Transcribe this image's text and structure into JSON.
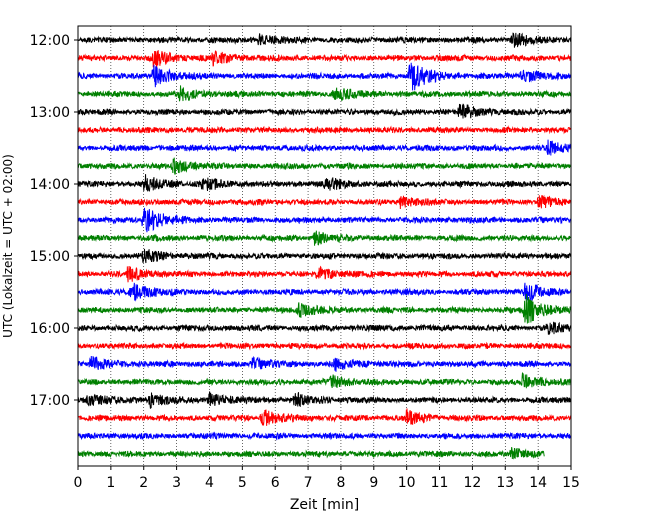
{
  "chart_data": {
    "type": "line",
    "subtype": "helicorder",
    "title": "",
    "xlabel": "Zeit  [min]",
    "ylabel": "UTC (Lokalzeit = UTC + 02:00)",
    "xlim": [
      0,
      15
    ],
    "x_ticks": [
      0,
      1,
      2,
      3,
      4,
      5,
      6,
      7,
      8,
      9,
      10,
      11,
      12,
      13,
      14,
      15
    ],
    "x_tick_labels": [
      "0",
      "1",
      "2",
      "3",
      "4",
      "5",
      "6",
      "7",
      "8",
      "9",
      "10",
      "11",
      "12",
      "13",
      "14",
      "15"
    ],
    "y_tick_labels": [
      "12:00",
      "13:00",
      "14:00",
      "15:00",
      "16:00",
      "17:00"
    ],
    "grid": "vertical dotted lines at each minute",
    "trace_interval_min": 15,
    "trace_count": 24,
    "trace_colors": [
      "#000000",
      "#ff0000",
      "#0000ff",
      "#008000"
    ],
    "trace_end_minute_last": 14.2,
    "events": [
      {
        "trace": 0,
        "minute": 5.5,
        "amp": 1.3
      },
      {
        "trace": 0,
        "minute": 13.2,
        "amp": 1.6
      },
      {
        "trace": 1,
        "minute": 2.3,
        "amp": 2.0
      },
      {
        "trace": 1,
        "minute": 4.1,
        "amp": 1.4
      },
      {
        "trace": 2,
        "minute": 2.3,
        "amp": 2.5
      },
      {
        "trace": 2,
        "minute": 10.1,
        "amp": 4.2
      },
      {
        "trace": 2,
        "minute": 13.5,
        "amp": 1.6
      },
      {
        "trace": 3,
        "minute": 3.1,
        "amp": 1.5
      },
      {
        "trace": 3,
        "minute": 7.8,
        "amp": 1.6
      },
      {
        "trace": 4,
        "minute": 11.6,
        "amp": 1.8
      },
      {
        "trace": 6,
        "minute": 14.3,
        "amp": 1.4
      },
      {
        "trace": 7,
        "minute": 2.9,
        "amp": 1.5
      },
      {
        "trace": 8,
        "minute": 2.0,
        "amp": 1.9
      },
      {
        "trace": 8,
        "minute": 3.8,
        "amp": 1.5
      },
      {
        "trace": 8,
        "minute": 7.5,
        "amp": 1.6
      },
      {
        "trace": 9,
        "minute": 9.8,
        "amp": 1.2
      },
      {
        "trace": 9,
        "minute": 14.0,
        "amp": 1.3
      },
      {
        "trace": 10,
        "minute": 2.0,
        "amp": 3.6
      },
      {
        "trace": 11,
        "minute": 7.2,
        "amp": 1.4
      },
      {
        "trace": 12,
        "minute": 2.0,
        "amp": 1.6
      },
      {
        "trace": 13,
        "minute": 1.5,
        "amp": 1.6
      },
      {
        "trace": 13,
        "minute": 7.3,
        "amp": 1.3
      },
      {
        "trace": 14,
        "minute": 1.6,
        "amp": 2.2
      },
      {
        "trace": 14,
        "minute": 13.6,
        "amp": 2.3
      },
      {
        "trace": 15,
        "minute": 6.7,
        "amp": 1.6
      },
      {
        "trace": 15,
        "minute": 13.6,
        "amp": 3.6
      },
      {
        "trace": 16,
        "minute": 14.3,
        "amp": 1.3
      },
      {
        "trace": 18,
        "minute": 0.4,
        "amp": 1.6
      },
      {
        "trace": 18,
        "minute": 5.3,
        "amp": 1.3
      },
      {
        "trace": 18,
        "minute": 7.8,
        "amp": 1.3
      },
      {
        "trace": 19,
        "minute": 7.7,
        "amp": 1.4
      },
      {
        "trace": 19,
        "minute": 13.5,
        "amp": 1.8
      },
      {
        "trace": 20,
        "minute": 0.3,
        "amp": 1.5
      },
      {
        "trace": 20,
        "minute": 2.2,
        "amp": 1.5
      },
      {
        "trace": 20,
        "minute": 4.0,
        "amp": 1.6
      },
      {
        "trace": 20,
        "minute": 6.6,
        "amp": 1.5
      },
      {
        "trace": 21,
        "minute": 5.6,
        "amp": 2.0
      },
      {
        "trace": 21,
        "minute": 10.0,
        "amp": 1.6
      },
      {
        "trace": 23,
        "minute": 13.2,
        "amp": 1.3
      }
    ]
  }
}
